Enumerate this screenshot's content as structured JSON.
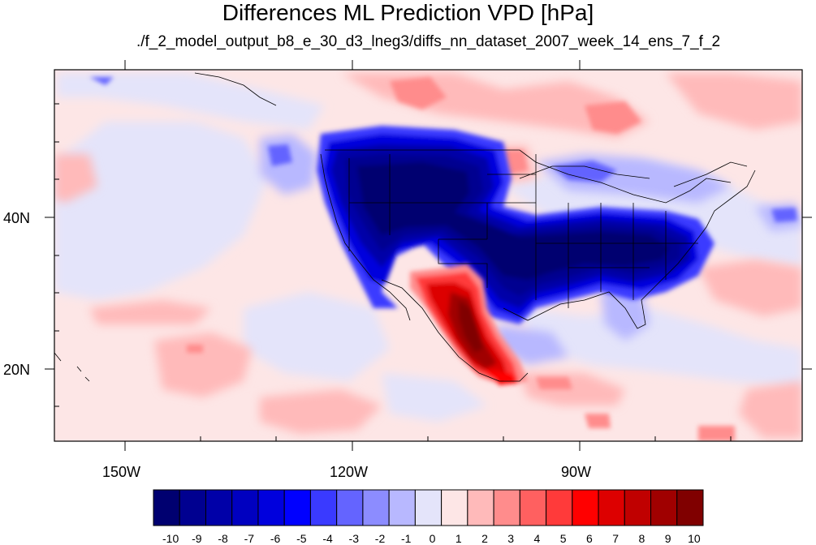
{
  "header": {
    "title": "Differences ML Prediction VPD [hPa]",
    "subtitle": "./f_2_model_output_b8_e_30_d3_lneg3/diffs_nn_dataset_2007_week_14_ens_7_f_2"
  },
  "map": {
    "lon_range": [
      -165,
      -67
    ],
    "lat_range": [
      11,
      60
    ],
    "x_ticks": [
      {
        "lon": -150,
        "label": "150W"
      },
      {
        "lon": -120,
        "label": "120W"
      },
      {
        "lon": -90,
        "label": "90W"
      }
    ],
    "y_ticks": [
      {
        "lat": 40,
        "label": "40N"
      },
      {
        "lat": 20,
        "label": "20N"
      }
    ],
    "background_color": "#fde6e6",
    "land_outline_color": "#000000"
  },
  "colorbar": {
    "labels": [
      "-10",
      "-9",
      "-8",
      "-7",
      "-6",
      "-5",
      "-4",
      "-3",
      "-2",
      "-1",
      "0",
      "1",
      "2",
      "3",
      "4",
      "5",
      "6",
      "7",
      "8",
      "9",
      "10"
    ],
    "colors": [
      "#000070",
      "#000090",
      "#0000a8",
      "#0000c0",
      "#0000dd",
      "#0000ff",
      "#3a3aff",
      "#6464ff",
      "#8c8cff",
      "#b8b8ff",
      "#e4e4fa",
      "#fde6e6",
      "#ffbaba",
      "#ff8c8c",
      "#ff6060",
      "#ff3a3a",
      "#ff0000",
      "#dd0000",
      "#c00000",
      "#a00000",
      "#800000"
    ]
  }
}
